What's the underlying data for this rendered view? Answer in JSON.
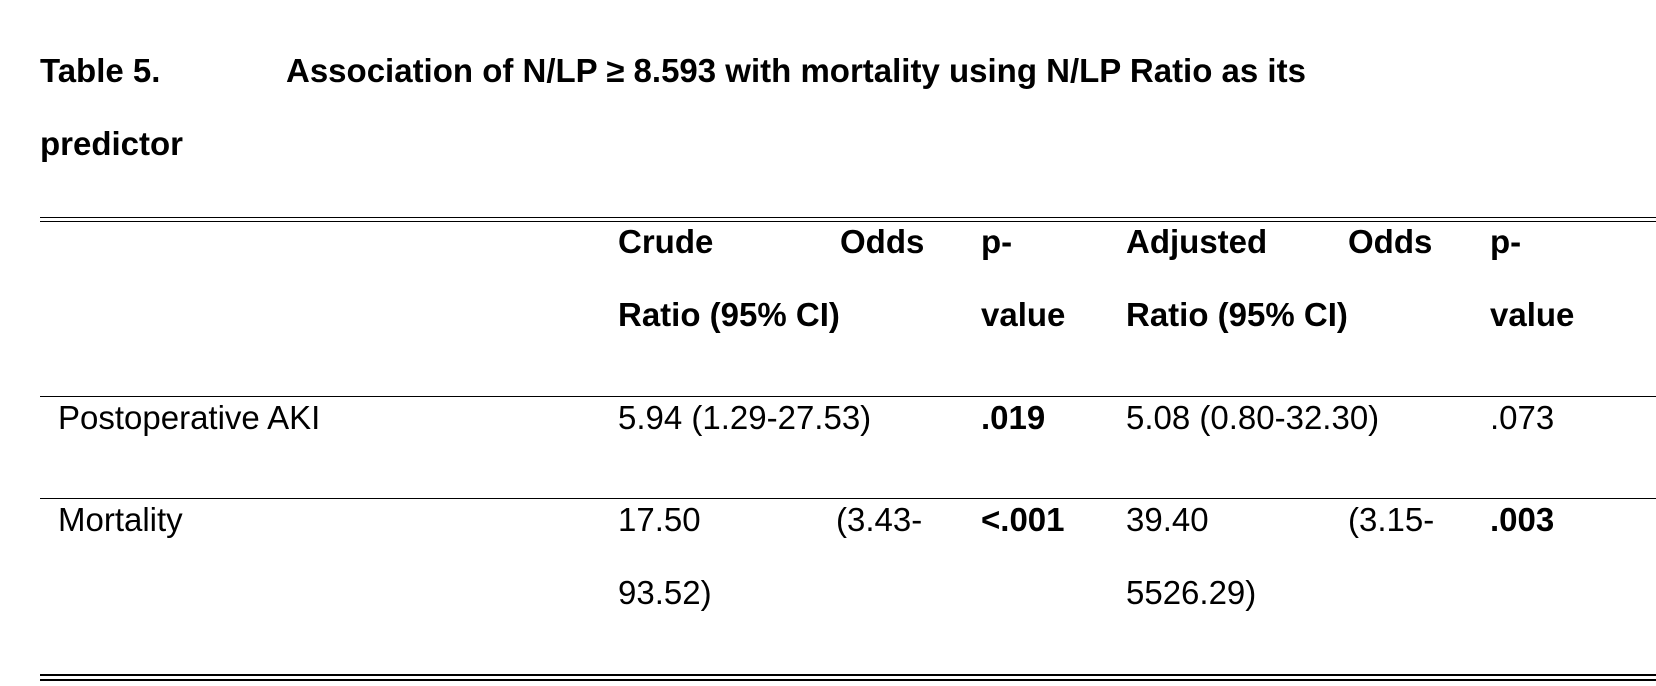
{
  "caption": {
    "label": "Table 5.",
    "title_line1": "Association of N/LP ≥ 8.593 with mortality using N/LP Ratio as its",
    "title_line2": "predictor"
  },
  "table": {
    "headers": {
      "crude_or_word1": "Crude",
      "crude_or_word2": "Odds",
      "crude_or_line2": "Ratio (95% CI)",
      "p1_line1": "p-",
      "p1_line2": "value",
      "adj_or_word1": "Adjusted",
      "adj_or_word2": "Odds",
      "adj_or_line2": "Ratio (95% CI)",
      "p2_line1": "p-",
      "p2_line2": "value"
    },
    "rows": [
      {
        "label": "Postoperative AKI",
        "crude_or": "5.94 (1.29-27.53)",
        "p1": ".019",
        "adj_or": "5.08 (0.80-32.30)",
        "p2": ".073"
      },
      {
        "label": "Mortality",
        "crude_or_part1": "17.50",
        "crude_or_part2": "(3.43-",
        "crude_or_line2": "93.52)",
        "p1": "<.001",
        "adj_or_part1": "39.40",
        "adj_or_part2": "(3.15-",
        "adj_or_line2": "5526.29)",
        "p2": ".003"
      }
    ]
  }
}
